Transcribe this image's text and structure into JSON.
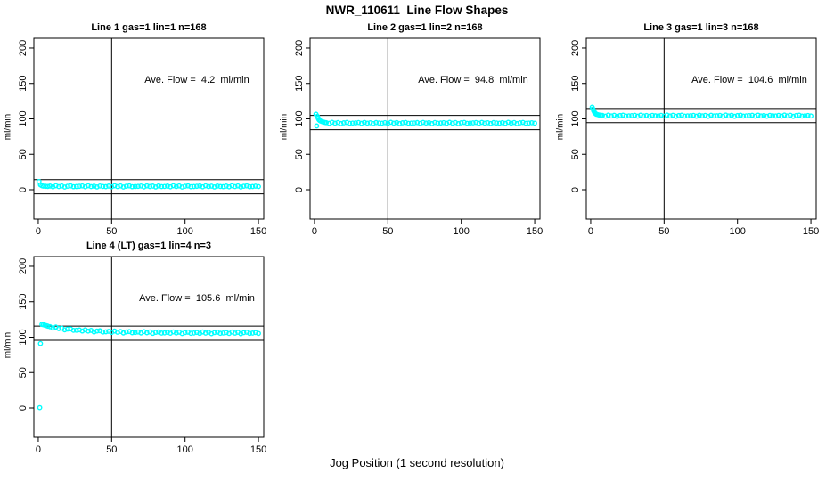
{
  "main_title": "NWR_110611  Line Flow Shapes",
  "x_axis_title": "Jog Position (1 second resolution)",
  "colors": {
    "marker": "#00FFFF",
    "axis": "#000000",
    "background": "#FFFFFF"
  },
  "chart_data": [
    {
      "type": "scatter",
      "title": "Line 1 gas=1 lin=1 n=168",
      "ylabel": "ml/min",
      "ave_flow": 4.2,
      "n": 168,
      "annotation": {
        "text": "Ave. Flow =  4.2  ml/min"
      },
      "xlim": [
        -3,
        153.6
      ],
      "ylim": [
        -41.5,
        213.8
      ],
      "xticks": [
        0,
        50,
        100,
        150
      ],
      "yticks": [
        0,
        50,
        100,
        150,
        200
      ],
      "ref_vline": 50,
      "ref_hlines": [
        14.2,
        -5.8
      ],
      "series": {
        "start_points": [
          [
            0.5,
            11.5
          ],
          [
            1.5,
            6.8
          ],
          [
            2.5,
            5.6
          ],
          [
            3.5,
            5.0
          ],
          [
            5,
            4.8
          ],
          [
            6.5,
            4.6
          ]
        ],
        "band": {
          "x0": 8,
          "step": 2,
          "values": [
            5.1,
            4.1,
            5.6,
            4.4,
            5.3,
            3.8,
            4.9,
            5.4,
            4.2,
            4.5,
            4.8,
            5.3,
            4.1,
            5.5,
            4.4,
            5.0,
            3.9,
            5.2,
            4.6,
            4.3,
            5.1,
            4.1,
            5.6,
            4.4,
            5.3,
            3.8,
            4.9,
            5.4,
            4.2,
            4.5,
            4.7,
            5.2,
            4.0,
            5.4,
            4.5,
            5.1,
            3.9,
            5.3,
            4.4,
            4.6,
            5.1,
            4.1,
            5.6,
            4.4,
            5.3,
            3.8,
            4.9,
            5.4,
            4.2,
            4.5,
            4.8,
            5.3,
            4.1,
            5.5,
            4.4,
            5.0,
            3.9,
            5.2,
            4.6,
            4.3,
            5.1,
            4.1,
            5.6,
            4.4,
            5.3,
            3.8,
            4.9,
            5.4,
            4.2,
            4.5,
            5.0,
            4.4
          ]
        }
      }
    },
    {
      "type": "scatter",
      "title": "Line 2 gas=1 lin=2 n=168",
      "ylabel": "ml/min",
      "ave_flow": 94.8,
      "n": 168,
      "annotation": {
        "text": "Ave. Flow =  94.8  ml/min"
      },
      "xlim": [
        -3,
        153.6
      ],
      "ylim": [
        -41.5,
        213.8
      ],
      "xticks": [
        0,
        50,
        100,
        150
      ],
      "yticks": [
        0,
        50,
        100,
        150,
        200
      ],
      "ref_vline": 50,
      "ref_hlines": [
        104.8,
        84.8
      ],
      "series": {
        "start_points": [
          [
            1,
            106.5
          ],
          [
            1.5,
            90.0
          ],
          [
            2,
            103.5
          ],
          [
            2.5,
            101.0
          ],
          [
            3,
            99.0
          ],
          [
            3.5,
            97.8
          ],
          [
            4,
            97.0
          ],
          [
            5,
            96.2
          ],
          [
            6,
            95.5
          ],
          [
            7,
            95.0
          ]
        ],
        "band": {
          "x0": 8,
          "step": 2,
          "values": [
            94.6,
            93.6,
            95.1,
            93.9,
            94.8,
            93.3,
            94.4,
            94.9,
            93.7,
            94.0,
            94.3,
            94.8,
            93.6,
            95.0,
            93.9,
            94.5,
            93.4,
            94.7,
            94.1,
            93.8,
            94.6,
            93.6,
            95.1,
            93.9,
            94.8,
            93.3,
            94.4,
            94.9,
            93.7,
            94.0,
            94.2,
            94.7,
            93.5,
            94.9,
            94.0,
            94.6,
            93.3,
            94.8,
            93.9,
            94.1,
            94.6,
            93.6,
            95.1,
            93.9,
            94.8,
            93.3,
            94.4,
            94.9,
            93.7,
            94.0,
            94.3,
            94.8,
            93.6,
            95.0,
            93.9,
            94.5,
            93.4,
            94.7,
            94.1,
            93.8,
            94.6,
            93.6,
            95.1,
            93.9,
            94.8,
            93.3,
            94.4,
            94.9,
            93.7,
            94.0,
            94.5,
            93.9
          ]
        }
      }
    },
    {
      "type": "scatter",
      "title": "Line 3 gas=1 lin=3 n=168",
      "ylabel": "ml/min",
      "ave_flow": 104.6,
      "n": 168,
      "annotation": {
        "text": "Ave. Flow =  104.6  ml/min"
      },
      "xlim": [
        -3,
        153.6
      ],
      "ylim": [
        -41.5,
        213.8
      ],
      "xticks": [
        0,
        50,
        100,
        150
      ],
      "yticks": [
        0,
        50,
        100,
        150,
        200
      ],
      "ref_vline": 50,
      "ref_hlines": [
        114.6,
        94.6
      ],
      "series": {
        "start_points": [
          [
            1,
            116.5
          ],
          [
            1.5,
            114.0
          ],
          [
            2,
            111.5
          ],
          [
            2.5,
            109.5
          ],
          [
            3,
            108.0
          ],
          [
            3.5,
            107.0
          ],
          [
            4,
            106.4
          ],
          [
            5,
            105.8
          ],
          [
            6,
            105.3
          ],
          [
            7,
            105.0
          ]
        ],
        "band": {
          "x0": 8,
          "step": 2,
          "values": [
            104.8,
            103.8,
            105.3,
            104.1,
            105.0,
            103.5,
            104.6,
            105.1,
            103.9,
            104.2,
            104.5,
            105.0,
            103.8,
            105.2,
            104.1,
            104.7,
            103.6,
            104.9,
            104.3,
            104.0,
            104.8,
            103.8,
            105.3,
            104.1,
            105.0,
            103.5,
            104.6,
            105.1,
            103.9,
            104.2,
            104.4,
            104.9,
            103.7,
            105.1,
            104.2,
            104.8,
            103.5,
            105.0,
            104.1,
            104.3,
            104.8,
            103.8,
            105.3,
            104.1,
            105.0,
            103.5,
            104.6,
            105.1,
            103.9,
            104.2,
            104.5,
            105.0,
            103.8,
            105.2,
            104.1,
            104.7,
            103.6,
            104.9,
            104.3,
            104.0,
            104.8,
            103.8,
            105.3,
            104.1,
            105.0,
            103.5,
            104.6,
            105.1,
            103.9,
            104.2,
            104.7,
            104.1
          ]
        }
      }
    },
    {
      "type": "scatter",
      "title": "Line 4 (LT) gas=1 lin=4 n=3",
      "ylabel": "ml/min",
      "ave_flow": 105.6,
      "n": 3,
      "annotation": {
        "text": "Ave. Flow =  105.6  ml/min"
      },
      "xlim": [
        -3,
        153.6
      ],
      "ylim": [
        -41.5,
        213.8
      ],
      "xticks": [
        0,
        50,
        100,
        150
      ],
      "yticks": [
        0,
        50,
        100,
        150,
        200
      ],
      "ref_vline": 50,
      "ref_hlines": [
        115.6,
        95.6
      ],
      "series": {
        "start_points": [
          [
            1,
            0.5
          ],
          [
            1.5,
            91.0
          ],
          [
            2.5,
            118.0
          ],
          [
            3.5,
            117.5
          ],
          [
            4.5,
            116.8
          ],
          [
            5.5,
            116.2
          ],
          [
            6.5,
            115.5
          ]
        ],
        "band": {
          "x0": 8,
          "step": 2,
          "values": [
            114.7,
            112.8,
            114.2,
            112.0,
            112.7,
            110.3,
            111.4,
            111.6,
            109.6,
            109.7,
            110.2,
            108.6,
            110.3,
            108.5,
            109.5,
            107.3,
            108.6,
            109.0,
            107.2,
            107.5,
            108.2,
            106.7,
            108.6,
            106.9,
            108.0,
            105.9,
            107.3,
            107.8,
            106.2,
            106.5,
            107.2,
            105.9,
            107.8,
            106.2,
            107.3,
            105.3,
            106.7,
            107.3,
            105.7,
            106.0,
            106.8,
            105.5,
            107.4,
            105.8,
            107.0,
            105.0,
            106.4,
            107.0,
            105.4,
            105.8,
            106.6,
            105.3,
            107.3,
            105.7,
            106.9,
            104.9,
            106.4,
            107.0,
            105.4,
            105.8,
            106.5,
            105.2,
            107.2,
            105.6,
            106.8,
            104.8,
            106.3,
            106.9,
            105.3,
            105.7,
            106.5,
            105.2
          ]
        }
      }
    }
  ]
}
